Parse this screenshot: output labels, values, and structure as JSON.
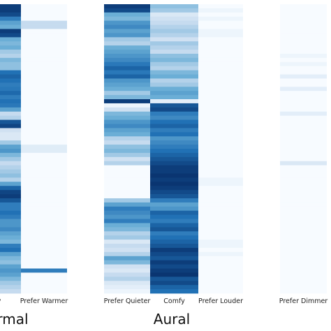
{
  "chart_data": {
    "type": "heatmap",
    "color_scale": {
      "low": "#f7fbff",
      "high": "#08306b",
      "name": "Blues"
    },
    "rows": 70,
    "groups": [
      {
        "label": "rmal",
        "columns": [
          {
            "label": "fy",
            "values": [
              0.95,
              0.95,
              0.9,
              0.7,
              0.55,
              0.5,
              0.95,
              0.9,
              0.5,
              0.45,
              0.5,
              0.35,
              0.3,
              0.45,
              0.4,
              0.4,
              0.75,
              0.8,
              0.75,
              0.7,
              0.72,
              0.78,
              0.7,
              0.75,
              0.72,
              0.55,
              0.25,
              0.3,
              0.85,
              0.92,
              0.2,
              0.15,
              0.15,
              0.35,
              0.55,
              0.6,
              0.45,
              0.35,
              0.25,
              0.3,
              0.35,
              0.4,
              0.3,
              0.55,
              0.8,
              0.92,
              0.95,
              0.85,
              0.7,
              0.7,
              0.75,
              0.7,
              0.6,
              0.6,
              0.65,
              0.55,
              0.5,
              0.45,
              0.7,
              0.75,
              0.55,
              0.45,
              0.4,
              0.55,
              0.6,
              0.55,
              0.45,
              0.35,
              0.3,
              0.25
            ]
          },
          {
            "label": "Prefer Warmer",
            "values": [
              0.0,
              0.0,
              0.0,
              0.0,
              0.25,
              0.25,
              0.0,
              0.0,
              0.0,
              0.0,
              0.0,
              0.0,
              0.0,
              0.0,
              0.0,
              0.0,
              0.0,
              0.0,
              0.0,
              0.0,
              0.0,
              0.0,
              0.0,
              0.0,
              0.0,
              0.0,
              0.0,
              0.0,
              0.0,
              0.0,
              0.0,
              0.0,
              0.0,
              0.0,
              0.12,
              0.12,
              0.0,
              0.0,
              0.0,
              0.0,
              0.0,
              0.0,
              0.0,
              0.0,
              0.0,
              0.0,
              0.0,
              0.0,
              0.0,
              0.0,
              0.0,
              0.0,
              0.0,
              0.0,
              0.0,
              0.0,
              0.0,
              0.0,
              0.0,
              0.0,
              0.0,
              0.0,
              0.0,
              0.0,
              0.7,
              0.0,
              0.0,
              0.0,
              0.0,
              0.0
            ]
          }
        ]
      },
      {
        "label": "Aural",
        "columns": [
          {
            "label": "Prefer Quieter",
            "values": [
              0.95,
              0.9,
              0.5,
              0.45,
              0.6,
              0.65,
              0.55,
              0.6,
              0.35,
              0.3,
              0.5,
              0.55,
              0.6,
              0.65,
              0.72,
              0.8,
              0.72,
              0.8,
              0.6,
              0.55,
              0.5,
              0.35,
              0.45,
              0.95,
              0.05,
              0.2,
              0.45,
              0.5,
              0.6,
              0.65,
              0.55,
              0.5,
              0.3,
              0.25,
              0.4,
              0.45,
              0.35,
              0.2,
              0.3,
              0.0,
              0.0,
              0.0,
              0.0,
              0.0,
              0.0,
              0.0,
              0.0,
              0.35,
              0.55,
              0.7,
              0.65,
              0.6,
              0.7,
              0.5,
              0.45,
              0.3,
              0.35,
              0.15,
              0.25,
              0.2,
              0.3,
              0.55,
              0.45,
              0.2,
              0.15,
              0.25,
              0.3,
              0.15,
              0.1,
              0.05
            ]
          },
          {
            "label": "Comfy",
            "values": [
              0.4,
              0.35,
              0.15,
              0.2,
              0.25,
              0.3,
              0.35,
              0.3,
              0.2,
              0.35,
              0.3,
              0.25,
              0.4,
              0.45,
              0.35,
              0.3,
              0.45,
              0.5,
              0.3,
              0.35,
              0.5,
              0.55,
              0.5,
              0.1,
              0.85,
              0.9,
              0.7,
              0.65,
              0.75,
              0.8,
              0.7,
              0.75,
              0.6,
              0.65,
              0.7,
              0.75,
              0.8,
              0.85,
              0.9,
              0.95,
              0.95,
              0.98,
              0.95,
              0.98,
              0.95,
              0.9,
              0.85,
              0.7,
              0.55,
              0.6,
              0.8,
              0.75,
              0.7,
              0.8,
              0.85,
              0.7,
              0.75,
              0.8,
              0.85,
              0.95,
              0.9,
              0.85,
              0.95,
              0.9,
              0.95,
              0.98,
              0.85,
              0.9,
              0.8,
              0.75
            ]
          },
          {
            "label": "Prefer Louder",
            "values": [
              0.0,
              0.05,
              0.0,
              0.05,
              0.0,
              0.0,
              0.05,
              0.05,
              0.0,
              0.0,
              0.0,
              0.0,
              0.0,
              0.0,
              0.0,
              0.0,
              0.0,
              0.0,
              0.0,
              0.0,
              0.0,
              0.0,
              0.0,
              0.0,
              0.0,
              0.0,
              0.0,
              0.0,
              0.0,
              0.0,
              0.0,
              0.0,
              0.0,
              0.0,
              0.0,
              0.0,
              0.0,
              0.0,
              0.0,
              0.0,
              0.0,
              0.0,
              0.05,
              0.05,
              0.0,
              0.0,
              0.0,
              0.0,
              0.0,
              0.0,
              0.0,
              0.0,
              0.0,
              0.0,
              0.0,
              0.0,
              0.0,
              0.05,
              0.05,
              0.0,
              0.05,
              0.0,
              0.0,
              0.0,
              0.0,
              0.0,
              0.0,
              0.0,
              0.0,
              0.0
            ]
          }
        ]
      },
      {
        "label": "",
        "columns": [
          {
            "label": "Prefer Dimmer",
            "values": [
              0.0,
              0.0,
              0.0,
              0.0,
              0.0,
              0.0,
              0.0,
              0.0,
              0.0,
              0.0,
              0.0,
              0.0,
              0.05,
              0.0,
              0.05,
              0.0,
              0.0,
              0.1,
              0.0,
              0.0,
              0.1,
              0.0,
              0.0,
              0.0,
              0.0,
              0.0,
              0.1,
              0.0,
              0.0,
              0.0,
              0.0,
              0.0,
              0.0,
              0.0,
              0.0,
              0.0,
              0.0,
              0.0,
              0.15,
              0.0,
              0.0,
              0.0,
              0.0,
              0.0,
              0.0,
              0.0,
              0.0,
              0.0,
              0.0,
              0.0,
              0.0,
              0.0,
              0.0,
              0.0,
              0.0,
              0.0,
              0.0,
              0.0,
              0.0,
              0.0,
              0.0,
              0.0,
              0.0,
              0.0,
              0.0,
              0.0,
              0.0,
              0.0,
              0.0,
              0.0
            ]
          }
        ]
      }
    ]
  }
}
